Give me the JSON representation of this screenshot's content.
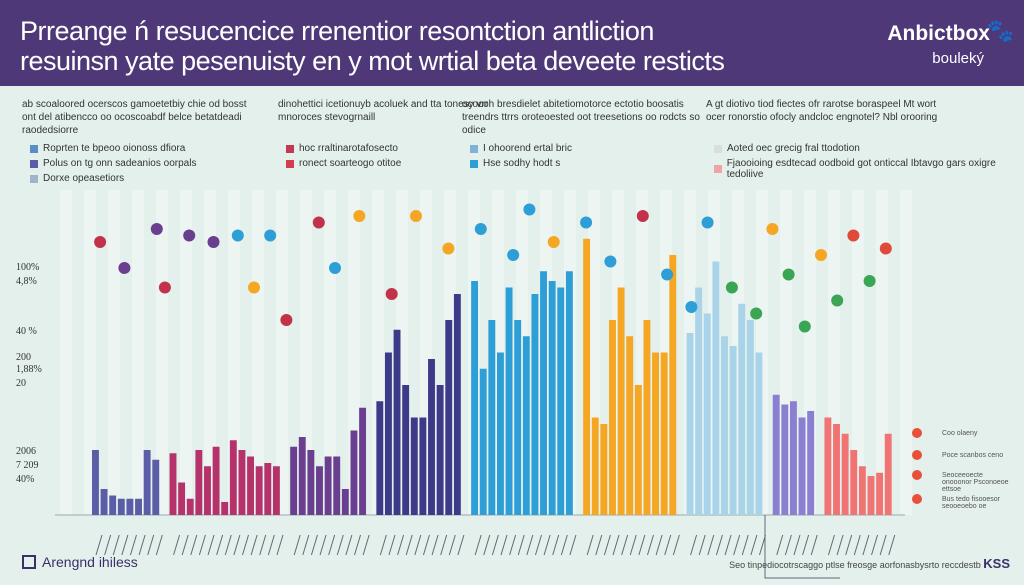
{
  "header": {
    "title_line1": "Prreange ń resucencice rrenentior resontction antliction",
    "title_line2": "resuinsn yate pesenuisty en y mot wrtial beta deveete resticts",
    "brand": "Anbictbox",
    "brand_sub": "bouleký",
    "brand_icon": "paw-icon"
  },
  "notes": [
    {
      "text": "ab scoaloored ocerscos gamoetetbiy chie od bosst ont del atibencco oo ocoscoabdf belce betatdeadi raodedsiorre",
      "legend": [
        {
          "label": "Roprten te bpeoo oionoss dfiora",
          "color": "#5b8ec9"
        },
        {
          "label": "Polus on tg onn sadeanios oorpals",
          "color": "#5b5ea6"
        },
        {
          "label": "Dorxe opeasetiors",
          "color": "#9fb4c8"
        }
      ]
    },
    {
      "text": "dinohettici icetionuyb acoluek and tta tonesy vrr mnoroces stevogrnaill",
      "legend": [
        {
          "label": "hoc rraltinarotafosecto",
          "color": "#c23a52"
        },
        {
          "label": "ronect soarteogo otitoe",
          "color": "#d43d4f"
        }
      ]
    },
    {
      "text": "ococoh bresdielet abitetiomotorce ectotio boosatis treendrs ttrrs oroteoested oot treesetions oo rodcts so odice",
      "legend": [
        {
          "label": "I ohoorend ertal bric",
          "color": "#7fb2d8"
        },
        {
          "label": "Hse sodhy hodt s",
          "color": "#2e9fd6"
        }
      ]
    },
    {
      "text": "A gt diotivo tiod fiectes ofr rarotse boraspeel Mt wort ocer ronorstio ofocly andcloc engnotel? Nbl orooring",
      "legend": [
        {
          "label": "Aoted oec grecig fral ttodotion",
          "color": "#d8dde0"
        },
        {
          "label": "Fjaooioing esdtecad oodboid got onticcal Ibtavgo gars oxigre tedoliive",
          "color": "#f2a3a3"
        }
      ]
    }
  ],
  "y_labels": [
    "100%",
    "4,8%",
    "40 %",
    "200",
    "1,88%",
    "20",
    "2006",
    "7 209",
    "40%"
  ],
  "side_labels": [
    "Coo olaeny",
    "Poce scanbos ceno",
    "Seoceeoecte onooonor Psconoeoe ettsoe",
    "Bus tedo fisooesor seooeoebo oe"
  ],
  "footer": {
    "left": "Arengnd ihiless",
    "right": "Seo tinpediocotrscaggo ptlse freosge aorfonasbysrto reccdestb",
    "right_mark": "KSS"
  },
  "chart_data": {
    "type": "bar",
    "ylim": [
      0,
      100
    ],
    "groups": [
      {
        "color": "#5b5ea6",
        "values": [
          20,
          8,
          6,
          5,
          5,
          5,
          20,
          17
        ]
      },
      {
        "color": "#b5326b",
        "values": [
          19,
          10,
          5,
          20,
          15,
          21,
          4,
          23,
          20,
          18,
          15,
          16,
          15
        ]
      },
      {
        "color": "#6a3f8f",
        "values": [
          21,
          24,
          20,
          15,
          18,
          18,
          8,
          26,
          33
        ]
      },
      {
        "color": "#3e3a8a",
        "values": [
          35,
          50,
          57,
          40,
          30,
          30,
          48,
          40,
          60,
          68
        ]
      },
      {
        "color": "#2e9fd6",
        "values": [
          72,
          45,
          60,
          50,
          70,
          60,
          55,
          68,
          75,
          72,
          70,
          75
        ]
      },
      {
        "color": "#f5a623",
        "values": [
          85,
          30,
          28,
          60,
          70,
          55,
          40,
          60,
          50,
          50,
          80
        ]
      },
      {
        "color": "#a9d3e8",
        "values": [
          56,
          70,
          62,
          78,
          55,
          52,
          65,
          60,
          50
        ]
      },
      {
        "color": "#8a7fd0",
        "values": [
          37,
          34,
          35,
          30,
          32
        ]
      },
      {
        "color": "#f07474",
        "values": [
          30,
          28,
          25,
          20,
          15,
          12,
          13,
          25
        ]
      }
    ],
    "dots": [
      {
        "x": 1,
        "y": 84,
        "c": "#c2324a"
      },
      {
        "x": 4,
        "y": 76,
        "c": "#6a3f8f"
      },
      {
        "x": 8,
        "y": 88,
        "c": "#6a3f8f"
      },
      {
        "x": 9,
        "y": 70,
        "c": "#c2324a"
      },
      {
        "x": 12,
        "y": 86,
        "c": "#6a3f8f"
      },
      {
        "x": 15,
        "y": 84,
        "c": "#6a3f8f"
      },
      {
        "x": 18,
        "y": 86,
        "c": "#2e9fd6"
      },
      {
        "x": 20,
        "y": 70,
        "c": "#f5a623"
      },
      {
        "x": 22,
        "y": 86,
        "c": "#2e9fd6"
      },
      {
        "x": 24,
        "y": 60,
        "c": "#c2324a"
      },
      {
        "x": 28,
        "y": 90,
        "c": "#c2324a"
      },
      {
        "x": 30,
        "y": 76,
        "c": "#2e9fd6"
      },
      {
        "x": 33,
        "y": 92,
        "c": "#f5a623"
      },
      {
        "x": 37,
        "y": 68,
        "c": "#c2324a"
      },
      {
        "x": 40,
        "y": 92,
        "c": "#f5a623"
      },
      {
        "x": 44,
        "y": 82,
        "c": "#f5a623"
      },
      {
        "x": 48,
        "y": 88,
        "c": "#2e9fd6"
      },
      {
        "x": 52,
        "y": 80,
        "c": "#2e9fd6"
      },
      {
        "x": 54,
        "y": 94,
        "c": "#2e9fd6"
      },
      {
        "x": 57,
        "y": 84,
        "c": "#f5a623"
      },
      {
        "x": 61,
        "y": 90,
        "c": "#2e9fd6"
      },
      {
        "x": 64,
        "y": 78,
        "c": "#2e9fd6"
      },
      {
        "x": 68,
        "y": 92,
        "c": "#c2324a"
      },
      {
        "x": 71,
        "y": 74,
        "c": "#2e9fd6"
      },
      {
        "x": 74,
        "y": 64,
        "c": "#2e9fd6"
      },
      {
        "x": 76,
        "y": 90,
        "c": "#2e9fd6"
      },
      {
        "x": 79,
        "y": 70,
        "c": "#3aa655"
      },
      {
        "x": 82,
        "y": 62,
        "c": "#3aa655"
      },
      {
        "x": 84,
        "y": 88,
        "c": "#f5a623"
      },
      {
        "x": 86,
        "y": 74,
        "c": "#3aa655"
      },
      {
        "x": 88,
        "y": 58,
        "c": "#3aa655"
      },
      {
        "x": 90,
        "y": 80,
        "c": "#f5a623"
      },
      {
        "x": 92,
        "y": 66,
        "c": "#3aa655"
      },
      {
        "x": 94,
        "y": 86,
        "c": "#e04a3a"
      },
      {
        "x": 96,
        "y": 72,
        "c": "#3aa655"
      },
      {
        "x": 98,
        "y": 82,
        "c": "#e04a3a"
      }
    ]
  }
}
